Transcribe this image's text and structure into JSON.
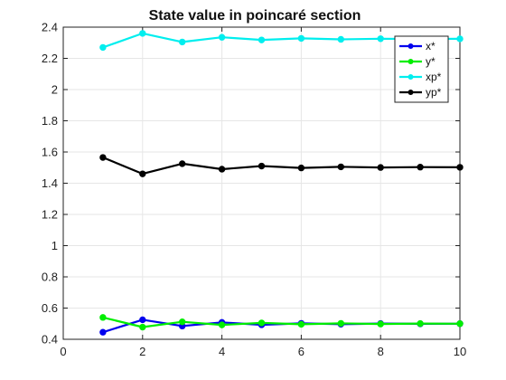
{
  "chart_data": {
    "type": "line",
    "title": "State value in poincaré section",
    "xlabel": "",
    "ylabel": "",
    "xlim": [
      0,
      10
    ],
    "ylim": [
      0.4,
      2.4
    ],
    "x_ticks": [
      "0",
      "2",
      "4",
      "6",
      "8",
      "10"
    ],
    "y_ticks": [
      "0.4",
      "0.6",
      "0.8",
      "1",
      "1.2",
      "1.4",
      "1.6",
      "1.8",
      "2",
      "2.2",
      "2.4"
    ],
    "grid": true,
    "legend_position": "top-right",
    "x": [
      1,
      2,
      3,
      4,
      5,
      6,
      7,
      8,
      9,
      10
    ],
    "series": [
      {
        "name": "x*",
        "color": "#0000ee",
        "values": [
          0.445,
          0.525,
          0.485,
          0.508,
          0.493,
          0.502,
          0.497,
          0.501,
          0.499,
          0.5
        ]
      },
      {
        "name": "y*",
        "color": "#00ee00",
        "values": [
          0.54,
          0.478,
          0.512,
          0.492,
          0.505,
          0.496,
          0.502,
          0.498,
          0.501,
          0.5
        ]
      },
      {
        "name": "xp*",
        "color": "#00eeee",
        "values": [
          2.27,
          2.36,
          2.305,
          2.335,
          2.318,
          2.328,
          2.322,
          2.326,
          2.324,
          2.325
        ]
      },
      {
        "name": "yp*",
        "color": "#000000",
        "values": [
          1.565,
          1.46,
          1.525,
          1.49,
          1.51,
          1.498,
          1.505,
          1.501,
          1.503,
          1.502
        ]
      }
    ]
  }
}
